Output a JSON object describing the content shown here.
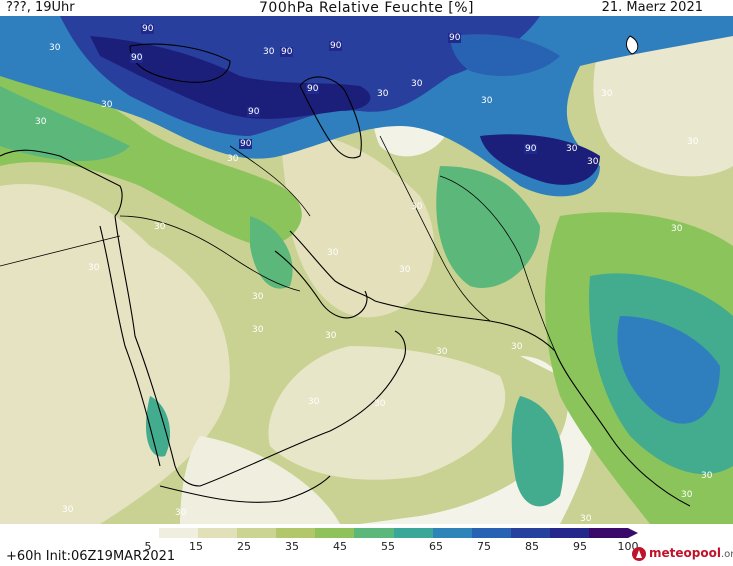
{
  "header": {
    "left": "???, 19Uhr",
    "title": "700hPa Relative Feuchte [%]",
    "right": "21. Maerz 2021"
  },
  "footer": {
    "init": "+60h  Init:06Z19MAR2021",
    "brand": "meteopool",
    "brand_suffix": ".org"
  },
  "colorbar": {
    "colors": [
      "#ffffff",
      "#f0eede",
      "#e2e0b8",
      "#ccd494",
      "#b2c76a",
      "#8fc25a",
      "#5cb77a",
      "#3aa79a",
      "#2e84b8",
      "#2862b2",
      "#25419d",
      "#24288a",
      "#3a0a6b"
    ],
    "ticks": [
      "5",
      "15",
      "25",
      "35",
      "45",
      "55",
      "65",
      "75",
      "85",
      "95",
      "100"
    ]
  },
  "contour_labels": {
    "dark": [
      "90",
      "90",
      "90",
      "90",
      "90",
      "90",
      "90",
      "90",
      "90"
    ],
    "light": [
      "30",
      "30",
      "30",
      "30",
      "30",
      "30",
      "30",
      "30",
      "30",
      "30",
      "30",
      "30",
      "30",
      "30",
      "30",
      "30",
      "30",
      "30",
      "30",
      "30",
      "30",
      "30",
      "30",
      "30",
      "30",
      "30",
      "30",
      "30",
      "30",
      "30"
    ]
  },
  "colors": {
    "very_dry": "#f8f7f2",
    "dry": "#e4e2bd",
    "moderate": "#c6d08a",
    "green": "#8cc45c",
    "teal": "#43ab8e",
    "blue": "#2f7fbf",
    "darkblue": "#283f9e",
    "navy": "#1c1f7a"
  }
}
